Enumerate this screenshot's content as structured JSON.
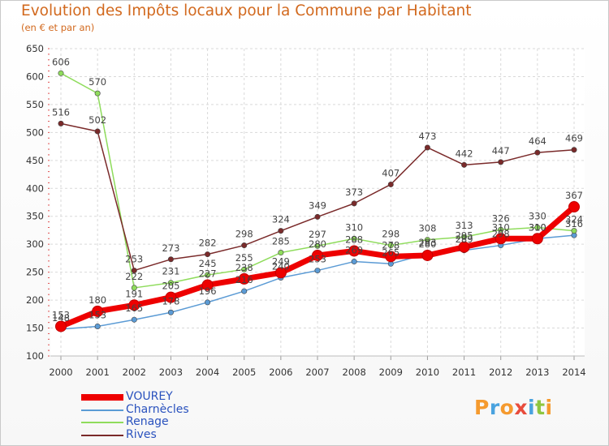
{
  "chart_data": {
    "type": "line",
    "title": "Evolution des Impôts locaux pour la Commune par Habitant",
    "subtitle": "(en € et par an)",
    "xlabel": "",
    "ylabel": "",
    "ylim": [
      100,
      650
    ],
    "yticks": [
      100,
      150,
      200,
      250,
      300,
      350,
      400,
      450,
      500,
      550,
      600,
      650
    ],
    "categories": [
      "2000",
      "2001",
      "2002",
      "2003",
      "2004",
      "2005",
      "2006",
      "2007",
      "2008",
      "2009",
      "2010",
      "2011",
      "2012",
      "2013",
      "2014"
    ],
    "grid": true,
    "legend_position": "bottom-left",
    "series": [
      {
        "name": "VOUREY",
        "color": "#ee0000",
        "emphasis": true,
        "values": [
          153,
          180,
          191,
          205,
          227,
          238,
          249,
          280,
          288,
          278,
          280,
          295,
          310,
          310,
          367
        ]
      },
      {
        "name": "Charnècles",
        "color": "#5b9bd5",
        "values": [
          148,
          153,
          165,
          178,
          196,
          216,
          240,
          253,
          269,
          265,
          283,
          289,
          298,
          310,
          316
        ]
      },
      {
        "name": "Renage",
        "color": "#8fdc5c",
        "values": [
          606,
          570,
          222,
          231,
          245,
          255,
          285,
          297,
          310,
          298,
          308,
          313,
          326,
          330,
          324
        ]
      },
      {
        "name": "Rives",
        "color": "#7a2a2a",
        "values": [
          516,
          502,
          253,
          273,
          282,
          298,
          324,
          349,
          373,
          407,
          473,
          442,
          447,
          464,
          469
        ]
      }
    ]
  },
  "logo": {
    "letters": [
      "P",
      "r",
      "o",
      "x",
      "i",
      "t",
      "i"
    ],
    "colors": [
      "#f59a2e",
      "#4aa3df",
      "#f59a2e",
      "#e84c3d",
      "#4aa3df",
      "#8fc640",
      "#f59a2e"
    ]
  }
}
